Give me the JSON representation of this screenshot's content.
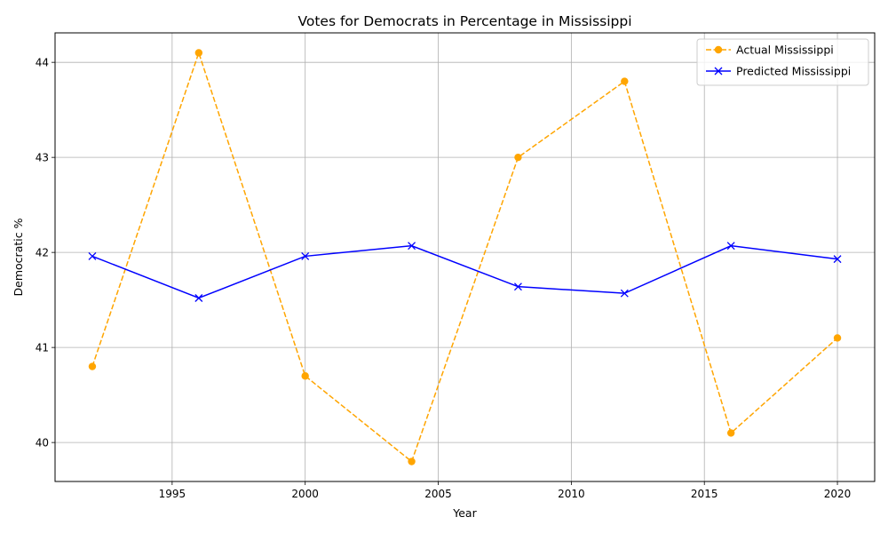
{
  "chart_data": {
    "type": "line",
    "title": "Votes for Democrats in Percentage in Mississippi",
    "xlabel": "Year",
    "ylabel": "Democratic %",
    "x": [
      1992,
      1996,
      2000,
      2004,
      2008,
      2012,
      2016,
      2020
    ],
    "series": [
      {
        "name": "Actual Mississippi",
        "values": [
          40.8,
          44.1,
          40.7,
          39.8,
          43.0,
          43.8,
          40.1,
          41.1
        ],
        "color": "#ffa500",
        "line_style": "dashed",
        "marker": "circle"
      },
      {
        "name": "Predicted Mississippi",
        "values": [
          41.96,
          41.52,
          41.96,
          42.07,
          41.64,
          41.57,
          42.07,
          41.93
        ],
        "color": "#0000ff",
        "line_style": "solid",
        "marker": "x"
      }
    ],
    "xlim": [
      1990.6,
      2021.4
    ],
    "ylim": [
      39.59,
      44.31
    ],
    "xticks": [
      1995,
      2000,
      2005,
      2010,
      2015,
      2020
    ],
    "yticks": [
      40,
      41,
      42,
      43,
      44
    ],
    "grid": true,
    "legend_position": "top-right"
  }
}
